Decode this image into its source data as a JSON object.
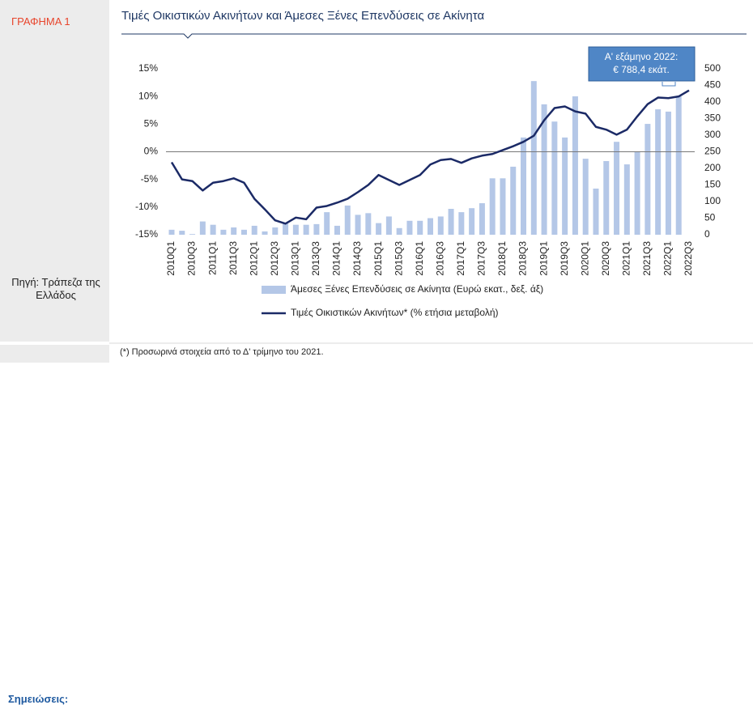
{
  "panel": {
    "label": "ΓΡΑΦΗΜΑ 1",
    "source": "Πηγή: Τράπεζα της Ελλάδος",
    "notes_heading": "Σημειώσεις:"
  },
  "note": "(*) Προσωρινά στοιχεία από το Δ' τρίμηνο του 2021.",
  "chart_data": {
    "type": "bar",
    "title": "Τιμές Οικιστικών Ακινήτων και Άμεσες Ξένες Επενδύσεις σε Ακίνητα",
    "annotation": [
      "Α' εξάμηνο 2022:",
      "€ 788,4 εκάτ."
    ],
    "categories": [
      "2010Q1",
      null,
      "2010Q3",
      null,
      "2011Q1",
      null,
      "2011Q3",
      null,
      "2012Q1",
      null,
      "2012Q3",
      null,
      "2013Q1",
      null,
      "2013Q3",
      null,
      "2014Q1",
      null,
      "2014Q3",
      null,
      "2015Q1",
      null,
      "2015Q3",
      null,
      "2016Q1",
      null,
      "2016Q3",
      null,
      "2017Q1",
      null,
      "2017Q3",
      null,
      "2018Q1",
      null,
      "2018Q3",
      null,
      "2019Q1",
      null,
      "2019Q3",
      null,
      "2020Q1",
      null,
      "2020Q3",
      null,
      "2021Q1",
      null,
      "2021Q3",
      null,
      "2022Q1",
      null,
      "2022Q3"
    ],
    "series": [
      {
        "name": "Άμεσες Ξένες Επενδύσεις σε Ακίνητα (Ευρώ εκατ., δεξ. άξ)",
        "type": "bar",
        "axis": "y2",
        "color": "#b4c7e7",
        "values": [
          15,
          12,
          2,
          40,
          30,
          15,
          22,
          15,
          27,
          10,
          22,
          35,
          30,
          30,
          32,
          68,
          27,
          88,
          60,
          65,
          35,
          55,
          20,
          42,
          42,
          50,
          55,
          78,
          68,
          80,
          95,
          170,
          170,
          205,
          293,
          463,
          393,
          341,
          293,
          417,
          229,
          139,
          222,
          280,
          212,
          251,
          334,
          378,
          371,
          417,
          null
        ]
      },
      {
        "name": "Τιμές Οικιστικών Ακινήτων* (% ετήσια μεταβολή)",
        "type": "line",
        "axis": "y",
        "color": "#1b2a66",
        "values": [
          -1.9,
          -5.0,
          -5.3,
          -7.0,
          -5.6,
          -5.3,
          -4.8,
          -5.6,
          -8.5,
          -10.4,
          -12.4,
          -13.0,
          -11.9,
          -12.2,
          -10.1,
          -9.8,
          -9.2,
          -8.5,
          -7.3,
          -6.0,
          -4.2,
          -5.1,
          -6.0,
          -5.1,
          -4.2,
          -2.3,
          -1.5,
          -1.3,
          -2.0,
          -1.2,
          -0.7,
          -0.4,
          0.3,
          1.0,
          1.8,
          2.9,
          5.7,
          7.9,
          8.2,
          7.3,
          6.9,
          4.5,
          4.0,
          3.1,
          4.0,
          6.4,
          8.6,
          9.8,
          9.7,
          10.0,
          11.1
        ]
      }
    ],
    "ylim": [
      -15,
      15
    ],
    "yticks": [
      {
        "value": -15,
        "label": "-15%"
      },
      {
        "value": -10,
        "label": "-10%"
      },
      {
        "value": -5,
        "label": "-5%"
      },
      {
        "value": 0,
        "label": "0%"
      },
      {
        "value": 5,
        "label": "5%"
      },
      {
        "value": 10,
        "label": "10%"
      },
      {
        "value": 15,
        "label": "15%"
      }
    ],
    "y2lim": [
      0,
      500
    ],
    "y2ticks": [
      0,
      50,
      100,
      150,
      200,
      250,
      300,
      350,
      400,
      450,
      500
    ]
  }
}
